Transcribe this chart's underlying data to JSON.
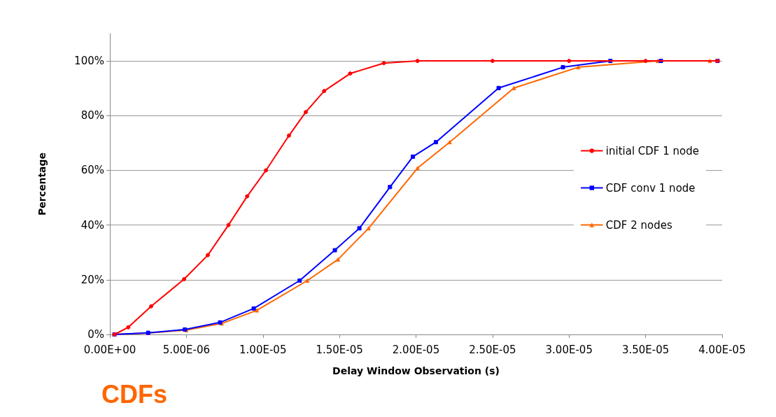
{
  "chart_data": {
    "type": "line",
    "title": "CDFs",
    "xlabel": "Delay Window Observation (s)",
    "ylabel": "Percentage",
    "xlim": [
      0,
      4e-05
    ],
    "xticks": [
      {
        "value": 0,
        "label": "0.00E+00"
      },
      {
        "value": 5e-06,
        "label": "5.00E-06"
      },
      {
        "value": 1e-05,
        "label": "1.00E-05"
      },
      {
        "value": 1.5e-05,
        "label": "1.50E-05"
      },
      {
        "value": 2e-05,
        "label": "2.00E-05"
      },
      {
        "value": 2.5e-05,
        "label": "2.50E-05"
      },
      {
        "value": 3e-05,
        "label": "3.00E-05"
      },
      {
        "value": 3.5e-05,
        "label": "3.50E-05"
      },
      {
        "value": 4e-05,
        "label": "4.00E-05"
      }
    ],
    "ylim": [
      0,
      110
    ],
    "yticks": [
      {
        "value": 0,
        "label": "0%"
      },
      {
        "value": 20,
        "label": "20%"
      },
      {
        "value": 40,
        "label": "40%"
      },
      {
        "value": 60,
        "label": "60%"
      },
      {
        "value": 80,
        "label": "80%"
      },
      {
        "value": 100,
        "label": "100%"
      }
    ],
    "grid": "y",
    "legend": "right",
    "line_style": "solid",
    "series": [
      {
        "name": "initial CDF 1 node",
        "color": "#ff0000",
        "marker": "circle",
        "x": [
          3e-07,
          1.2e-06,
          2.7e-06,
          4.85e-06,
          6.4e-06,
          7.75e-06,
          8.97e-06,
          1.02e-05,
          1.17e-05,
          1.28e-05,
          1.4e-05,
          1.57e-05,
          1.79e-05,
          2.01e-05,
          2.5e-05,
          3e-05,
          3.5e-05,
          3.97e-05
        ],
        "values": [
          0,
          2.6,
          10.3,
          20.2,
          29,
          40,
          50.5,
          60,
          72.7,
          81.3,
          89,
          95.4,
          99.2,
          100,
          100,
          100,
          100,
          100
        ]
      },
      {
        "name": "CDF conv 1 node",
        "color": "#0000ff",
        "marker": "square",
        "x": [
          3e-07,
          2.5e-06,
          4.9e-06,
          7.2e-06,
          9.4e-06,
          1.24e-05,
          1.47e-05,
          1.63e-05,
          1.83e-05,
          1.98e-05,
          2.13e-05,
          2.54e-05,
          2.96e-05,
          3.27e-05,
          3.6e-05,
          3.97e-05
        ],
        "values": [
          0,
          0.6,
          1.8,
          4.4,
          9.5,
          19.7,
          30.8,
          38.8,
          53.9,
          65,
          70.3,
          90.1,
          97.7,
          100,
          100,
          100
        ]
      },
      {
        "name": "CDF 2 nodes",
        "color": "#ff6600",
        "marker": "triangle",
        "x": [
          3e-07,
          2.5e-06,
          5e-06,
          7.3e-06,
          9.6e-06,
          1.29e-05,
          1.49e-05,
          1.69e-05,
          2.01e-05,
          2.22e-05,
          2.64e-05,
          3.06e-05,
          3.58e-05,
          3.92e-05
        ],
        "values": [
          0,
          0.5,
          1.6,
          4,
          8.8,
          19.7,
          27.4,
          38.8,
          60.8,
          70.3,
          90.1,
          97.7,
          100,
          100
        ]
      }
    ]
  }
}
